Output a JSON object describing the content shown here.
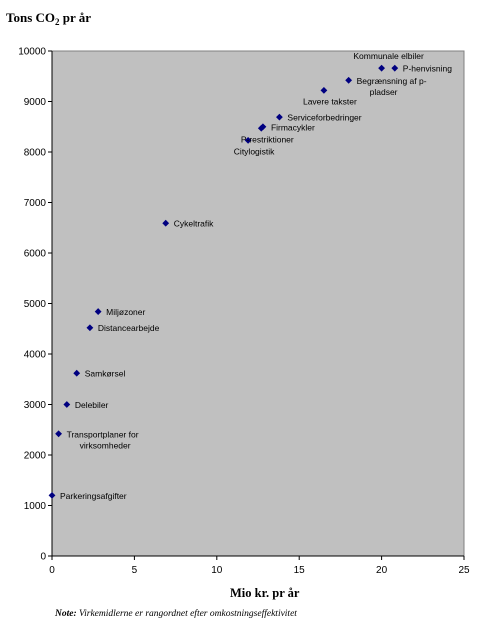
{
  "chart_data": {
    "type": "scatter",
    "title_main": "Tons CO",
    "title_sub": "2",
    "title_rest": " pr år",
    "xlabel": "Mio kr. pr år",
    "xlim": [
      0,
      25
    ],
    "ylim": [
      0,
      10000
    ],
    "xticks": [
      0,
      5,
      10,
      15,
      20,
      25
    ],
    "yticks": [
      0,
      1000,
      2000,
      3000,
      4000,
      5000,
      6000,
      7000,
      8000,
      9000,
      10000
    ],
    "grid": false,
    "marker_color": "#000080",
    "plot_background": "#c0c0c0",
    "points": [
      {
        "x": 0.0,
        "y": 1200,
        "label": [
          "Parkeringsafgifter"
        ],
        "anchor": "right"
      },
      {
        "x": 0.4,
        "y": 2420,
        "label": [
          "Transportplaner for",
          "virksomheder"
        ],
        "anchor": "right"
      },
      {
        "x": 0.9,
        "y": 3000,
        "label": [
          "Delebiler"
        ],
        "anchor": "right"
      },
      {
        "x": 1.5,
        "y": 3620,
        "label": [
          "Samkørsel"
        ],
        "anchor": "right"
      },
      {
        "x": 2.3,
        "y": 4520,
        "label": [
          "Distancearbejde"
        ],
        "anchor": "right"
      },
      {
        "x": 2.8,
        "y": 4840,
        "label": [
          "Miljøzoner"
        ],
        "anchor": "right"
      },
      {
        "x": 6.9,
        "y": 6590,
        "label": [
          "Cykeltrafik"
        ],
        "anchor": "right"
      },
      {
        "x": 11.9,
        "y": 8230,
        "label": [
          "Citylogistik"
        ],
        "anchor": "below"
      },
      {
        "x": 12.7,
        "y": 8470,
        "label": [
          "P-restriktioner"
        ],
        "anchor": "below"
      },
      {
        "x": 12.8,
        "y": 8500,
        "label": [
          "Firmacykler"
        ],
        "anchor": "right"
      },
      {
        "x": 13.8,
        "y": 8690,
        "label": [
          "Serviceforbedringer"
        ],
        "anchor": "right"
      },
      {
        "x": 16.5,
        "y": 9220,
        "label": [
          "Lavere takster"
        ],
        "anchor": "below"
      },
      {
        "x": 18.0,
        "y": 9420,
        "label": [
          "Begrænsning af p-",
          "pladser"
        ],
        "anchor": "right"
      },
      {
        "x": 20.0,
        "y": 9660,
        "label": [
          "Kommunale elbiler"
        ],
        "anchor": "above"
      },
      {
        "x": 20.8,
        "y": 9660,
        "label": [
          "P-henvisning"
        ],
        "anchor": "right"
      }
    ]
  },
  "note": {
    "prefix": "Note:",
    "text": " Virkemidlerne er rangordnet efter omkostningseffektivitet"
  }
}
